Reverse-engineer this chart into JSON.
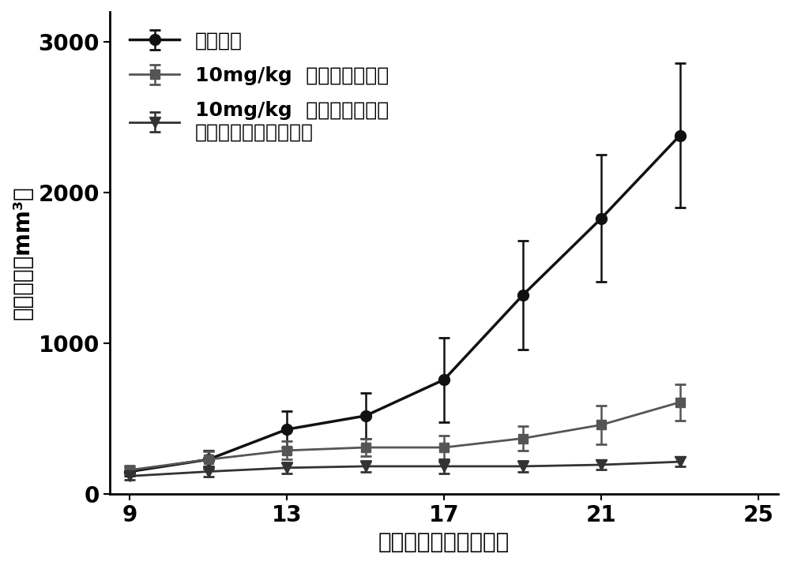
{
  "title": "",
  "xlabel": "接种肿瘤后天数（天）",
  "ylabel": "肿瘤体积（mm³）",
  "xlim": [
    8.5,
    25.5
  ],
  "ylim": [
    0,
    3200
  ],
  "xticks": [
    9,
    13,
    17,
    21,
    25
  ],
  "yticks": [
    0,
    1000,
    2000,
    3000
  ],
  "series": [
    {
      "label": "空白对照",
      "x": [
        9,
        11,
        13,
        15,
        17,
        19,
        21,
        23
      ],
      "y": [
        150,
        230,
        430,
        520,
        760,
        1320,
        1830,
        2380
      ],
      "yerr": [
        30,
        60,
        120,
        150,
        280,
        360,
        420,
        480
      ],
      "color": "#111111",
      "marker": "o",
      "markersize": 10,
      "linewidth": 2.5
    },
    {
      "label": "10mg/kg  紫杉醇泰素制剂",
      "x": [
        9,
        11,
        13,
        15,
        17,
        19,
        21,
        23
      ],
      "y": [
        160,
        230,
        290,
        310,
        310,
        370,
        460,
        610
      ],
      "yerr": [
        30,
        55,
        60,
        60,
        80,
        80,
        130,
        120
      ],
      "color": "#555555",
      "marker": "s",
      "markersize": 9,
      "linewidth": 2.0
    },
    {
      "label": "10mg/kg  邻硝基苯丙酸紫\n杉醇偶联物载药纳米粒",
      "x": [
        9,
        11,
        13,
        15,
        17,
        19,
        21,
        23
      ],
      "y": [
        120,
        150,
        175,
        185,
        185,
        185,
        195,
        215
      ],
      "yerr": [
        25,
        35,
        35,
        35,
        45,
        35,
        30,
        30
      ],
      "color": "#333333",
      "marker": "v",
      "markersize": 10,
      "linewidth": 2.0
    }
  ],
  "legend_fontsize": 18,
  "axis_label_fontsize": 20,
  "tick_fontsize": 20,
  "background_color": "#ffffff"
}
